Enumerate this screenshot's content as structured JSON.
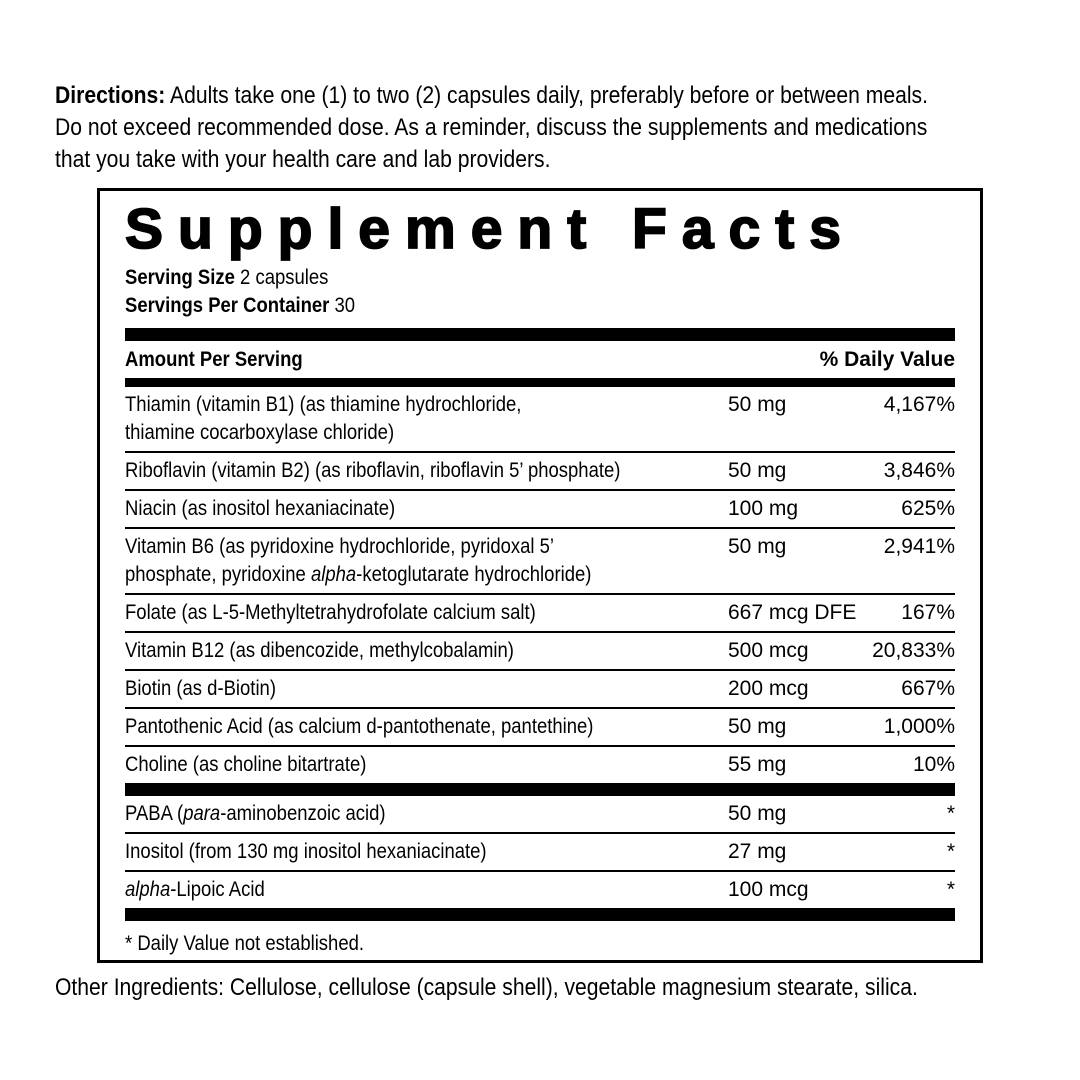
{
  "colors": {
    "text": "#000000",
    "background": "#ffffff"
  },
  "directions": {
    "label": "Directions:",
    "lines": [
      " Adults take one (1) to two (2) capsules daily, preferably before or between meals.",
      "Do not exceed recommended dose. As a reminder, discuss the supplements and medications",
      "that you take with your health care and lab providers."
    ]
  },
  "panel": {
    "title": "Supplement Facts",
    "serving_size_label": "Serving Size",
    "serving_size_value": " 2 capsules",
    "servings_per_container_label": "Servings Per Container",
    "servings_per_container_value": " 30",
    "header": {
      "amount": "Amount Per Serving",
      "daily_value": "% Daily Value"
    },
    "rows": [
      {
        "name": [
          {
            "t": "Thiamin (vitamin B1) (as thiamine hydrochloride,"
          },
          {
            "br": true
          },
          {
            "t": "thiamine cocarboxylase chloride)"
          }
        ],
        "amount": "50 mg",
        "dv": "4,167%"
      },
      {
        "name": [
          {
            "t": "Riboflavin (vitamin B2) (as riboflavin, riboflavin 5’ phosphate)"
          }
        ],
        "amount": "50 mg",
        "dv": "3,846%"
      },
      {
        "name": [
          {
            "t": "Niacin (as inositol hexaniacinate)"
          }
        ],
        "amount": "100 mg",
        "dv": "625%"
      },
      {
        "name": [
          {
            "t": "Vitamin B6 (as pyridoxine hydrochloride, pyridoxal 5’"
          },
          {
            "br": true
          },
          {
            "t": "phosphate, pyridoxine "
          },
          {
            "t": "alpha",
            "i": true
          },
          {
            "t": "-ketoglutarate hydrochloride)"
          }
        ],
        "amount": "50 mg",
        "dv": "2,941%"
      },
      {
        "name": [
          {
            "t": "Folate (as L-5-Methyltetrahydrofolate calcium salt)"
          }
        ],
        "amount": "667 mcg DFE",
        "dv": "167%"
      },
      {
        "name": [
          {
            "t": "Vitamin B12 (as dibencozide, methylcobalamin)"
          }
        ],
        "amount": "500 mcg",
        "dv": "20,833%"
      },
      {
        "name": [
          {
            "t": "Biotin (as d-Biotin)"
          }
        ],
        "amount": "200 mcg",
        "dv": "667%"
      },
      {
        "name": [
          {
            "t": "Pantothenic Acid (as calcium d-pantothenate, pantethine)"
          }
        ],
        "amount": "50 mg",
        "dv": "1,000%"
      },
      {
        "name": [
          {
            "t": "Choline (as choline bitartrate)"
          }
        ],
        "amount": "55 mg",
        "dv": "10%"
      },
      {
        "bar": true
      },
      {
        "name": [
          {
            "t": "PABA ("
          },
          {
            "t": "para",
            "i": true
          },
          {
            "t": "-aminobenzoic acid)"
          }
        ],
        "amount": "50 mg",
        "dv": "*"
      },
      {
        "name": [
          {
            "t": "Inositol (from 130 mg inositol hexaniacinate)"
          }
        ],
        "amount": "27 mg",
        "dv": "*"
      },
      {
        "name": [
          {
            "t": "alpha",
            "i": true
          },
          {
            "t": "-Lipoic Acid"
          }
        ],
        "amount": "100 mcg",
        "dv": "*"
      },
      {
        "bar": true
      }
    ],
    "footnote": "* Daily Value not established."
  },
  "other_ingredients": "Other Ingredients: Cellulose, cellulose (capsule shell), vegetable magnesium stearate, silica."
}
